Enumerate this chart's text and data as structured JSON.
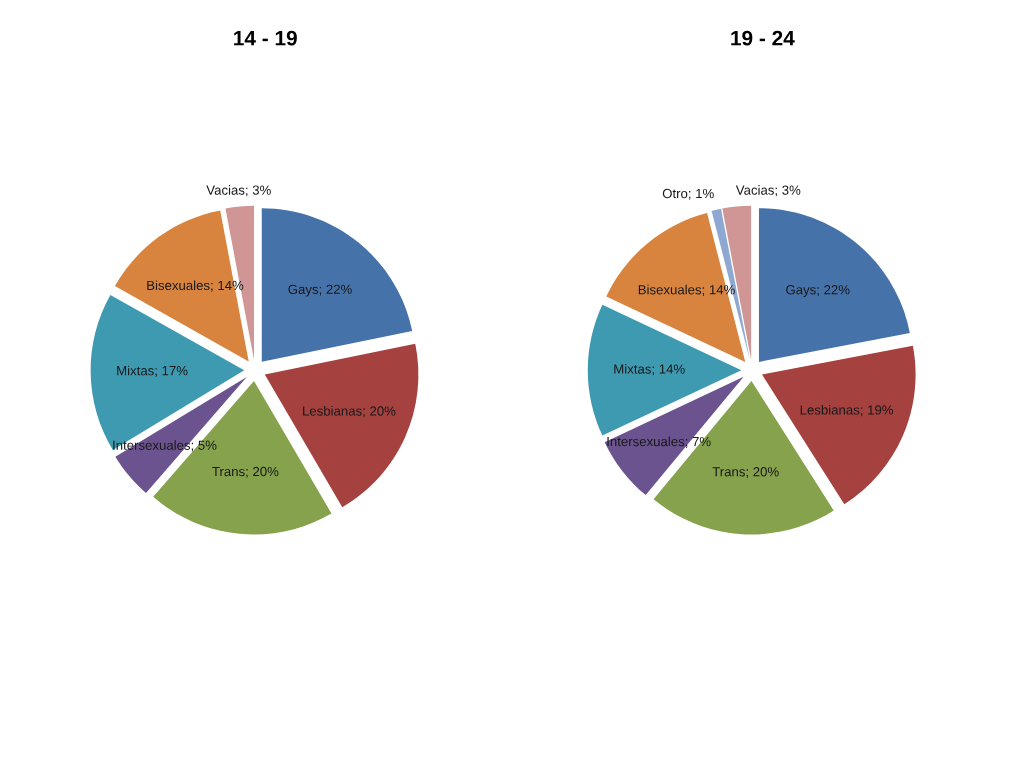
{
  "chart_data": [
    {
      "type": "pie",
      "title": "14 - 19",
      "categories": [
        "Gays",
        "Lesbianas",
        "Trans",
        "Intersexuales",
        "Mixtas",
        "Bisexuales",
        "Vacias"
      ],
      "values": [
        22,
        20,
        20,
        5,
        17,
        14,
        3
      ],
      "colors": [
        "#4672aa",
        "#a5413f",
        "#86a24c",
        "#6b5390",
        "#3e9ab1",
        "#d9843e",
        "#d09595"
      ],
      "value_labels": [
        "; 22%",
        "; 20%",
        "; 20%",
        "; 5%",
        "; 17%",
        "; 14%",
        "; 3%"
      ]
    },
    {
      "type": "pie",
      "title": "19 - 24",
      "categories": [
        "Gays",
        "Lesbianas",
        "Trans",
        "Intersexuales",
        "Mixtas",
        "Bisexuales",
        "Otro",
        "Vacias"
      ],
      "values": [
        22,
        19,
        20,
        7,
        14,
        14,
        1,
        3
      ],
      "colors": [
        "#4672aa",
        "#a5413f",
        "#86a24c",
        "#6b5390",
        "#3e9ab1",
        "#d9843e",
        "#8ea8d2",
        "#d09595"
      ],
      "value_labels": [
        "; 22%",
        "; 19%",
        "; 20%",
        "; 7%",
        "; 14%",
        "; 14%",
        "; 1%",
        "; 3%"
      ]
    }
  ]
}
